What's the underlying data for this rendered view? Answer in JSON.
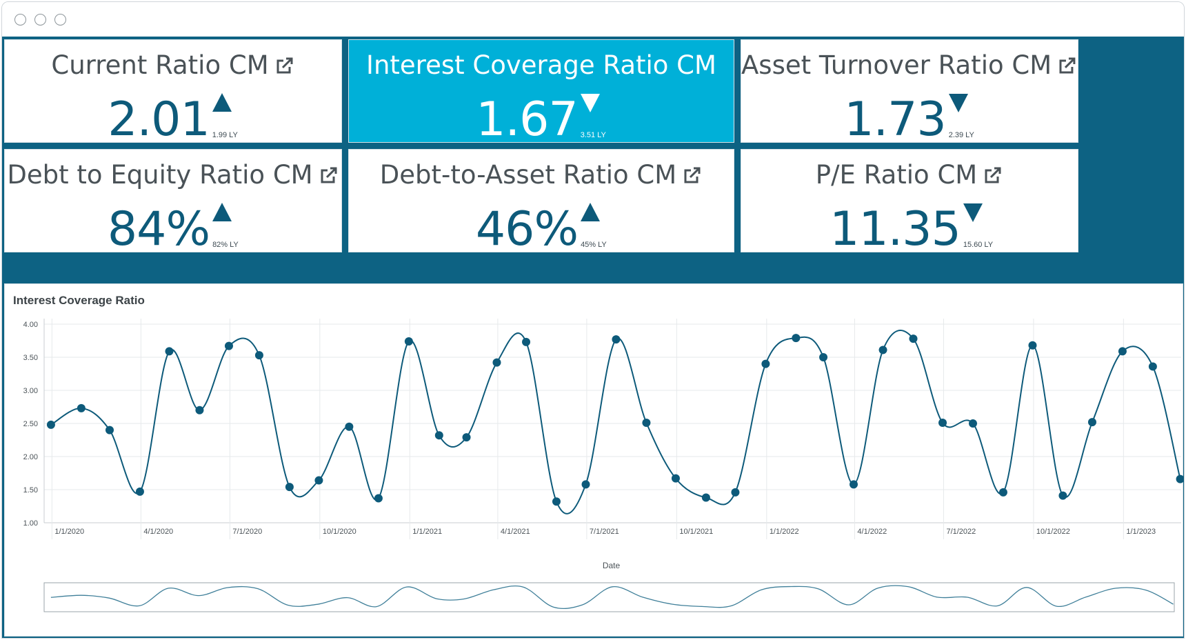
{
  "window": {
    "controls": [
      "close",
      "minimize",
      "maximize"
    ]
  },
  "colors": {
    "dark_teal": "#0d6283",
    "highlight": "#00b0d8",
    "value_text": "#0d5a7a",
    "line": "#0d5a7a"
  },
  "kpis": [
    {
      "title": "Current Ratio CM",
      "value": "2.01",
      "trend": "up",
      "ly": "1.99 LY",
      "active": false,
      "icon": "external-link-icon"
    },
    {
      "title": "Interest Coverage Ratio CM",
      "value": "1.67",
      "trend": "down",
      "ly": "3.51 LY",
      "active": true,
      "icon": ""
    },
    {
      "title": "Asset Turnover Ratio CM",
      "value": "1.73",
      "trend": "down",
      "ly": "2.39 LY",
      "active": false,
      "icon": "external-link-icon"
    },
    {
      "title": "Debt to Equity Ratio CM",
      "value": "84%",
      "trend": "up",
      "ly": "82% LY",
      "active": false,
      "icon": "external-link-icon"
    },
    {
      "title": "Debt-to-Asset Ratio CM",
      "value": "46%",
      "trend": "up",
      "ly": "45% LY",
      "active": false,
      "icon": "external-link-icon"
    },
    {
      "title": "P/E Ratio CM",
      "value": "11.35",
      "trend": "down",
      "ly": "15.60 LY",
      "active": false,
      "icon": "external-link-icon"
    }
  ],
  "chart_data": {
    "type": "line",
    "title": "Interest Coverage Ratio",
    "xlabel": "Date",
    "ylabel": "",
    "ylim": [
      1.0,
      4.0
    ],
    "y_ticks": [
      "1.00",
      "1.50",
      "2.00",
      "2.50",
      "3.00",
      "3.50",
      "4.00"
    ],
    "x_ticks": [
      "1/1/2020",
      "4/1/2020",
      "7/1/2020",
      "10/1/2020",
      "1/1/2021",
      "4/1/2021",
      "7/1/2021",
      "10/1/2021",
      "1/1/2022",
      "4/1/2022",
      "7/1/2022",
      "10/1/2022",
      "1/1/2023"
    ],
    "xlim": [
      "2019-12-24",
      "2023-03-01"
    ],
    "grid": true,
    "smooth": true,
    "navigator": true,
    "x": [
      "2019-12-31",
      "2020-01-31",
      "2020-02-29",
      "2020-03-31",
      "2020-04-30",
      "2020-05-31",
      "2020-06-30",
      "2020-07-31",
      "2020-08-31",
      "2020-09-30",
      "2020-10-31",
      "2020-11-30",
      "2020-12-31",
      "2021-01-31",
      "2021-02-28",
      "2021-03-31",
      "2021-04-30",
      "2021-05-31",
      "2021-06-30",
      "2021-07-31",
      "2021-08-31",
      "2021-09-30",
      "2021-10-31",
      "2021-11-30",
      "2021-12-31",
      "2022-01-31",
      "2022-02-28",
      "2022-03-31",
      "2022-04-30",
      "2022-05-31",
      "2022-06-30",
      "2022-07-31",
      "2022-08-31",
      "2022-09-30",
      "2022-10-31",
      "2022-11-30",
      "2022-12-31",
      "2023-01-31",
      "2023-02-28"
    ],
    "values": [
      2.48,
      2.73,
      2.4,
      1.47,
      3.59,
      2.7,
      3.67,
      3.53,
      1.54,
      1.64,
      2.45,
      1.37,
      3.74,
      2.32,
      2.29,
      3.42,
      3.73,
      1.32,
      1.58,
      3.77,
      2.51,
      1.67,
      1.38,
      1.46,
      3.4,
      3.79,
      3.5,
      1.58,
      3.61,
      3.78,
      2.51,
      2.5,
      1.46,
      3.68,
      1.41,
      2.52,
      3.59,
      3.36,
      1.66
    ]
  }
}
